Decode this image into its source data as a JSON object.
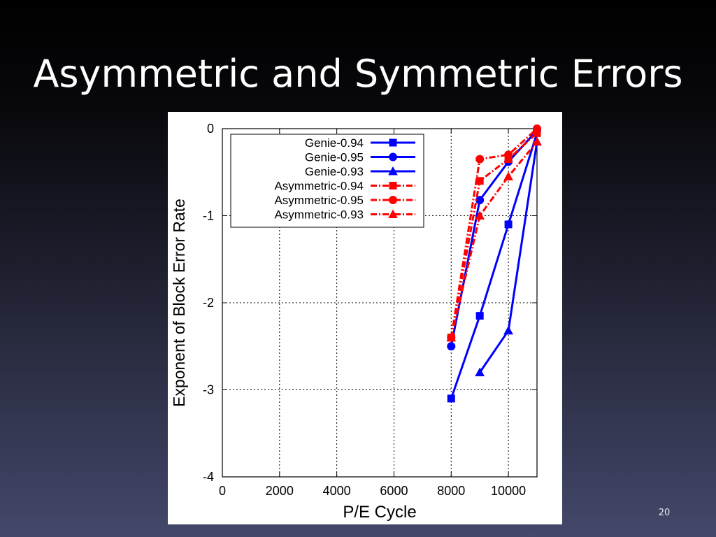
{
  "slide": {
    "title": "Asymmetric and Symmetric Errors",
    "page_number": "20"
  },
  "chart_data": {
    "type": "line",
    "title": "",
    "xlabel": "P/E Cycle",
    "ylabel": "Exponent of Block Error Rate",
    "xlim": [
      0,
      11000
    ],
    "ylim": [
      -4,
      0
    ],
    "xticks": [
      0,
      2000,
      4000,
      6000,
      8000,
      10000
    ],
    "yticks": [
      0,
      -1,
      -2,
      -3,
      -4
    ],
    "grid": true,
    "legend_position": "top-left",
    "series": [
      {
        "name": "Genie-0.94",
        "color": "#0000ff",
        "style": "solid",
        "marker": "square",
        "x": [
          8000,
          9000,
          10000,
          11000
        ],
        "y": [
          -3.1,
          -2.15,
          -1.1,
          -0.05
        ]
      },
      {
        "name": "Genie-0.95",
        "color": "#0000ff",
        "style": "solid",
        "marker": "circle",
        "x": [
          8000,
          9000,
          10000,
          11000
        ],
        "y": [
          -2.5,
          -0.82,
          -0.38,
          -0.02
        ]
      },
      {
        "name": "Genie-0.93",
        "color": "#0000ff",
        "style": "solid",
        "marker": "triangle",
        "x": [
          9000,
          10000,
          11000
        ],
        "y": [
          -2.8,
          -2.32,
          -0.15
        ]
      },
      {
        "name": "Asymmetric-0.94",
        "color": "#ff0000",
        "style": "dashdot",
        "marker": "square",
        "x": [
          8000,
          9000,
          10000,
          11000
        ],
        "y": [
          -2.4,
          -0.6,
          -0.35,
          -0.05
        ]
      },
      {
        "name": "Asymmetric-0.95",
        "color": "#ff0000",
        "style": "dashdot",
        "marker": "circle",
        "x": [
          8000,
          9000,
          10000,
          11000
        ],
        "y": [
          -2.4,
          -0.35,
          -0.3,
          0.0
        ]
      },
      {
        "name": "Asymmetric-0.93",
        "color": "#ff0000",
        "style": "dashdot",
        "marker": "triangle",
        "x": [
          8000,
          9000,
          10000,
          11000
        ],
        "y": [
          -2.4,
          -1.0,
          -0.55,
          -0.15
        ]
      }
    ]
  }
}
